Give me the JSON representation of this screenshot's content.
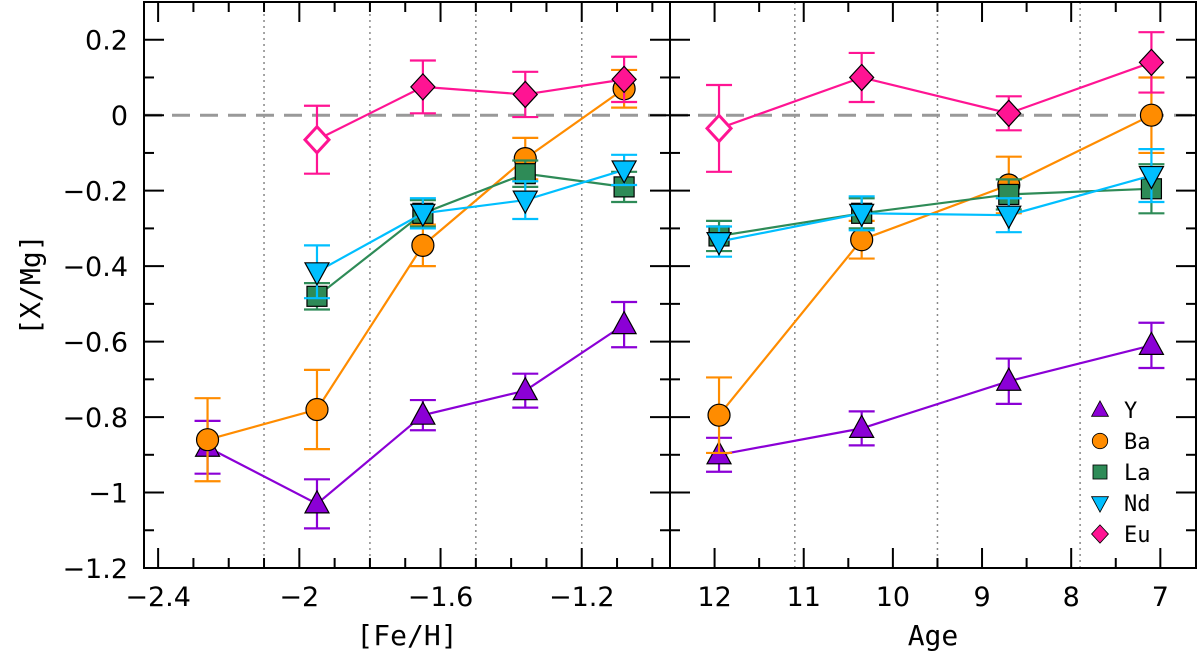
{
  "chart_data": {
    "type": "scatter",
    "shared_y": {
      "label": "[X/Mg]",
      "ylim": [
        -1.2,
        0.3
      ],
      "ticks": [
        0.2,
        0,
        -0.2,
        -0.4,
        -0.6,
        -0.8,
        -1,
        -1.2
      ],
      "tick_labels": [
        "0.2",
        "0",
        "−0.2",
        "−0.4",
        "−0.6",
        "−0.8",
        "−1",
        "−1.2"
      ],
      "reference_line": 0
    },
    "panels": [
      {
        "id": "feh",
        "xlabel": "[Fe/H]",
        "xlim": [
          -2.44,
          -0.95
        ],
        "xticks": [
          -2.4,
          -2.0,
          -1.6,
          -1.2
        ],
        "xtick_labels": [
          "−2.4",
          "−2",
          "−1.6",
          "−1.2"
        ],
        "vlines": [
          -2.1,
          -1.8,
          -1.5,
          -1.2
        ],
        "series": [
          {
            "name": "Y",
            "marker": "triangle-up",
            "color": "#8B00D6",
            "points": [
              {
                "x": -2.26,
                "y": -0.88,
                "err": 0.07
              },
              {
                "x": -1.95,
                "y": -1.03,
                "err": 0.065
              },
              {
                "x": -1.65,
                "y": -0.795,
                "err": 0.04
              },
              {
                "x": -1.36,
                "y": -0.73,
                "err": 0.045
              },
              {
                "x": -1.08,
                "y": -0.555,
                "err": 0.06
              }
            ]
          },
          {
            "name": "Ba",
            "marker": "circle",
            "color": "#FF8C00",
            "points": [
              {
                "x": -2.26,
                "y": -0.86,
                "err": 0.11
              },
              {
                "x": -1.95,
                "y": -0.78,
                "err": 0.105
              },
              {
                "x": -1.65,
                "y": -0.345,
                "err": 0.055
              },
              {
                "x": -1.36,
                "y": -0.115,
                "err": 0.055
              },
              {
                "x": -1.08,
                "y": 0.07,
                "err": 0.05
              }
            ]
          },
          {
            "name": "La",
            "marker": "square",
            "color": "#2E8B57",
            "points": [
              {
                "x": -1.95,
                "y": -0.48,
                "err": 0.035
              },
              {
                "x": -1.65,
                "y": -0.26,
                "err": 0.035
              },
              {
                "x": -1.36,
                "y": -0.155,
                "err": 0.035
              },
              {
                "x": -1.08,
                "y": -0.19,
                "err": 0.04
              }
            ]
          },
          {
            "name": "Nd",
            "marker": "triangle-down",
            "color": "#00BFFF",
            "points": [
              {
                "x": -1.95,
                "y": -0.415,
                "err": 0.07
              },
              {
                "x": -1.65,
                "y": -0.26,
                "err": 0.04
              },
              {
                "x": -1.36,
                "y": -0.225,
                "err": 0.05
              },
              {
                "x": -1.08,
                "y": -0.145,
                "err": 0.04
              }
            ]
          },
          {
            "name": "Eu",
            "marker": "diamond",
            "color": "#FF1493",
            "points": [
              {
                "x": -1.95,
                "y": -0.065,
                "err": 0.09,
                "open": true
              },
              {
                "x": -1.65,
                "y": 0.075,
                "err": 0.07
              },
              {
                "x": -1.36,
                "y": 0.055,
                "err": 0.06
              },
              {
                "x": -1.08,
                "y": 0.095,
                "err": 0.06
              }
            ]
          }
        ]
      },
      {
        "id": "age",
        "xlabel": "Age",
        "xlim": [
          12.5,
          6.6
        ],
        "xticks": [
          12,
          11,
          10,
          9,
          8,
          7
        ],
        "xtick_labels": [
          "12",
          "11",
          "10",
          "9",
          "8",
          "7"
        ],
        "vlines": [
          11.1,
          9.5,
          7.9
        ],
        "series": [
          {
            "name": "Y",
            "marker": "triangle-up",
            "color": "#8B00D6",
            "points": [
              {
                "x": 11.95,
                "y": -0.9,
                "err": 0.045
              },
              {
                "x": 10.35,
                "y": -0.83,
                "err": 0.045
              },
              {
                "x": 8.7,
                "y": -0.705,
                "err": 0.06
              },
              {
                "x": 7.1,
                "y": -0.61,
                "err": 0.06
              }
            ]
          },
          {
            "name": "Ba",
            "marker": "circle",
            "color": "#FF8C00",
            "points": [
              {
                "x": 11.95,
                "y": -0.795,
                "err": 0.1
              },
              {
                "x": 10.35,
                "y": -0.33,
                "err": 0.05
              },
              {
                "x": 8.7,
                "y": -0.185,
                "err": 0.075
              },
              {
                "x": 7.1,
                "y": 0.0,
                "err": 0.1
              }
            ]
          },
          {
            "name": "La",
            "marker": "square",
            "color": "#2E8B57",
            "points": [
              {
                "x": 11.95,
                "y": -0.32,
                "err": 0.04
              },
              {
                "x": 10.35,
                "y": -0.26,
                "err": 0.04
              },
              {
                "x": 8.7,
                "y": -0.21,
                "err": 0.04
              },
              {
                "x": 7.1,
                "y": -0.195,
                "err": 0.065
              }
            ]
          },
          {
            "name": "Nd",
            "marker": "triangle-down",
            "color": "#00BFFF",
            "points": [
              {
                "x": 11.95,
                "y": -0.335,
                "err": 0.04
              },
              {
                "x": 10.35,
                "y": -0.26,
                "err": 0.045
              },
              {
                "x": 8.7,
                "y": -0.265,
                "err": 0.045
              },
              {
                "x": 7.1,
                "y": -0.16,
                "err": 0.07
              }
            ]
          },
          {
            "name": "Eu",
            "marker": "diamond",
            "color": "#FF1493",
            "points": [
              {
                "x": 11.95,
                "y": -0.035,
                "err": 0.115,
                "open": true
              },
              {
                "x": 10.35,
                "y": 0.1,
                "err": 0.065
              },
              {
                "x": 8.7,
                "y": 0.005,
                "err": 0.045
              },
              {
                "x": 7.1,
                "y": 0.14,
                "err": 0.08
              }
            ]
          }
        ]
      }
    ],
    "legend": {
      "placement": "bottom-right",
      "entries": [
        "Y",
        "Ba",
        "La",
        "Nd",
        "Eu"
      ]
    }
  }
}
